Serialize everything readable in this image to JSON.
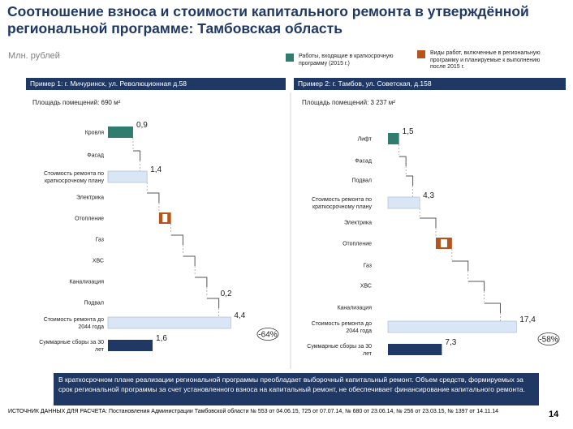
{
  "title": "Соотношение взноса и стоимости капитального ремонта в утверждённой региональной программе: Тамбовская область",
  "unit": "Млн. рублей",
  "legend": [
    {
      "label": "Работы, входящие в краткосрочную программу (2015 г.)",
      "color": "#2e7d6e"
    },
    {
      "label": "Виды работ, включенные в региональную программу и планируемые к выполнению после 2015 г.",
      "color": "#b5541c"
    }
  ],
  "colors": {
    "teal": "#2e7d6e",
    "brown": "#b5541c",
    "navy": "#1f3864",
    "light": "#d9e6f5"
  },
  "chart_data": [
    {
      "type": "bar",
      "header": "Пример 1: г. Мичуринск, ул. Революционная д.58",
      "area": "Площадь помещений: 690 м²",
      "rows": [
        {
          "label": "Кровля",
          "value": 0.9,
          "value_label": "0,9",
          "kind": "teal"
        },
        {
          "label": "Фасад",
          "kind": "step"
        },
        {
          "label": "Стоимость ремонта по краткосрочному плану",
          "value": 1.4,
          "value_label": "1,4",
          "kind": "total"
        },
        {
          "label": "Электрика",
          "kind": "step"
        },
        {
          "label": "Отопление",
          "kind": "brown"
        },
        {
          "label": "Газ",
          "kind": "step"
        },
        {
          "label": "ХВС",
          "kind": "step"
        },
        {
          "label": "Канализация",
          "kind": "step"
        },
        {
          "label": "Подвал",
          "value": 0.2,
          "value_label": "0,2",
          "kind": "step"
        },
        {
          "label": "Стоимость ремонта до 2044 года",
          "value": 4.4,
          "value_label": "4,4",
          "kind": "total"
        },
        {
          "label": "Суммарные сборы за 30 лет",
          "value": 1.6,
          "value_label": "1,6",
          "kind": "navy"
        }
      ],
      "gap_label": "-64%"
    },
    {
      "type": "bar",
      "header": "Пример 2: г. Тамбов, ул. Советская, д.158",
      "area": "Площадь помещений: 3 237 м²",
      "rows": [
        {
          "label": "Лифт",
          "value": 1.5,
          "value_label": "1,5",
          "kind": "teal"
        },
        {
          "label": "Фасад",
          "kind": "step"
        },
        {
          "label": "Подвал",
          "kind": "step"
        },
        {
          "label": "Стоимость ремонта по краткосрочному плану",
          "value": 4.3,
          "value_label": "4,3",
          "kind": "total"
        },
        {
          "label": "Электрика",
          "kind": "step"
        },
        {
          "label": "Отопление",
          "kind": "brown"
        },
        {
          "label": "Газ",
          "kind": "step"
        },
        {
          "label": "ХВС",
          "kind": "step"
        },
        {
          "label": "Канализация",
          "kind": "step"
        },
        {
          "label": "Стоимость ремонта до 2044 года",
          "value": 17.4,
          "value_label": "17,4",
          "kind": "total"
        },
        {
          "label": "Суммарные сборы за 30 лет",
          "value": 7.3,
          "value_label": "7,3",
          "kind": "navy"
        }
      ],
      "gap_label": "-58%"
    }
  ],
  "conclusion": "В краткосрочном плане реализации региональной программы преобладает выборочный капитальный ремонт. Объем средств, формируемых за срок региональной программы за счет установленного взноса на капитальный ремонт, не обеспечивает финансирование капитального ремонта.",
  "source": "ИСТОЧНИК ДАННЫХ ДЛЯ РАСЧЕТА: Постановления Администрации Тамбовской области № 553 от 04.06.15, 725 от 07.07.14, № 680 от 23.06.14, № 256 от 23.03.15, № 1397 от 14.11.14",
  "page_number": "14"
}
